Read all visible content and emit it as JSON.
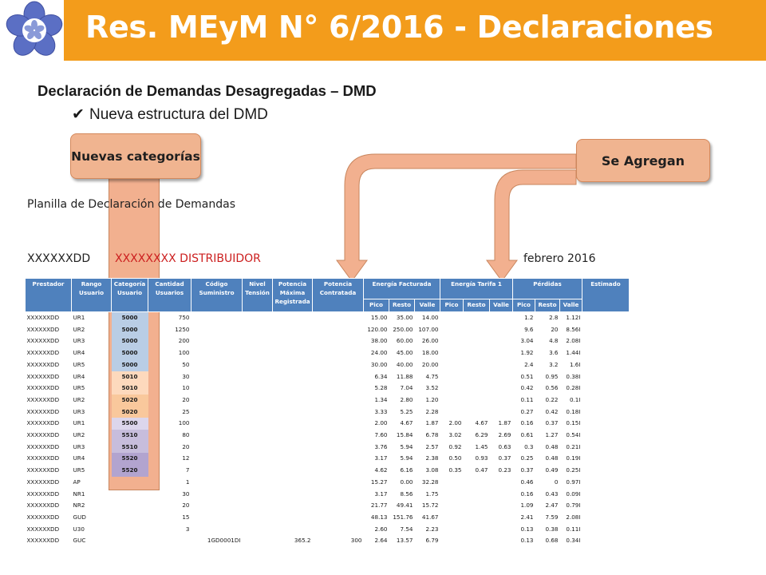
{
  "slide": {
    "title": "Res. MEyM N° 6/2016 - Declaraciones",
    "heading": "Declaración de Demandas Desagregadas – DMD",
    "bullet": "Nueva estructura del DMD",
    "callout_left": "Nuevas categorías",
    "callout_right": "Se Agregan",
    "planilla_title": "Planilla de Declaración de Demandas",
    "prestador_code": "XXXXXXDD",
    "distribuidor": "XXXXXXXX DISTRIBUIDOR",
    "period": "febrero 2016"
  },
  "colors": {
    "title_bar": "#f39c1b",
    "header_fill": "#4f81bd",
    "callout_fill": "#f0b490",
    "distribuidor_text": "#cc1f1f"
  },
  "table": {
    "headers": {
      "prestador": "Prestador",
      "rango": "Rango Usuario",
      "categoria": "Categoría Usuario",
      "cantidad": "Cantidad Usuarios",
      "codigo": "Código Suministro",
      "nivel": "Nivel Tensión",
      "pot_max": "Potencia Máxima Registrada",
      "pot_contr": "Potencia Contratada",
      "energia_fact": "Energía Facturada",
      "energia_t1": "Energía Tarifa 1",
      "perdidas": "Pérdidas",
      "estimado": "Estimado",
      "pico": "Pico",
      "resto": "Resto",
      "valle": "Valle"
    },
    "rows": [
      {
        "prestador": "XXXXXXDD",
        "rango": "UR1",
        "categoria": "5000",
        "cat_color": "c-blue",
        "cantidad": "750",
        "codigo": "",
        "nivel": "",
        "pmax": "",
        "pcont": "",
        "ef_pico": "15.00",
        "ef_resto": "35.00",
        "ef_valle": "14.00",
        "t1_pico": "",
        "t1_resto": "",
        "t1_valle": "",
        "p_pico": "1.2",
        "p_resto": "2.8",
        "p_valle": "1.12I",
        "estimado": ""
      },
      {
        "prestador": "XXXXXXDD",
        "rango": "UR2",
        "categoria": "5000",
        "cat_color": "c-blue",
        "cantidad": "1250",
        "codigo": "",
        "nivel": "",
        "pmax": "",
        "pcont": "",
        "ef_pico": "120.00",
        "ef_resto": "250.00",
        "ef_valle": "107.00",
        "t1_pico": "",
        "t1_resto": "",
        "t1_valle": "",
        "p_pico": "9.6",
        "p_resto": "20",
        "p_valle": "8.56I",
        "estimado": ""
      },
      {
        "prestador": "XXXXXXDD",
        "rango": "UR3",
        "categoria": "5000",
        "cat_color": "c-blue",
        "cantidad": "200",
        "codigo": "",
        "nivel": "",
        "pmax": "",
        "pcont": "",
        "ef_pico": "38.00",
        "ef_resto": "60.00",
        "ef_valle": "26.00",
        "t1_pico": "",
        "t1_resto": "",
        "t1_valle": "",
        "p_pico": "3.04",
        "p_resto": "4.8",
        "p_valle": "2.08I",
        "estimado": ""
      },
      {
        "prestador": "XXXXXXDD",
        "rango": "UR4",
        "categoria": "5000",
        "cat_color": "c-blue",
        "cantidad": "100",
        "codigo": "",
        "nivel": "",
        "pmax": "",
        "pcont": "",
        "ef_pico": "24.00",
        "ef_resto": "45.00",
        "ef_valle": "18.00",
        "t1_pico": "",
        "t1_resto": "",
        "t1_valle": "",
        "p_pico": "1.92",
        "p_resto": "3.6",
        "p_valle": "1.44I",
        "estimado": ""
      },
      {
        "prestador": "XXXXXXDD",
        "rango": "UR5",
        "categoria": "5000",
        "cat_color": "c-blue",
        "cantidad": "50",
        "codigo": "",
        "nivel": "",
        "pmax": "",
        "pcont": "",
        "ef_pico": "30.00",
        "ef_resto": "40.00",
        "ef_valle": "20.00",
        "t1_pico": "",
        "t1_resto": "",
        "t1_valle": "",
        "p_pico": "2.4",
        "p_resto": "3.2",
        "p_valle": "1.6I",
        "estimado": ""
      },
      {
        "prestador": "XXXXXXDD",
        "rango": "UR4",
        "categoria": "5010",
        "cat_color": "c-orange1",
        "cantidad": "30",
        "codigo": "",
        "nivel": "",
        "pmax": "",
        "pcont": "",
        "ef_pico": "6.34",
        "ef_resto": "11.88",
        "ef_valle": "4.75",
        "t1_pico": "",
        "t1_resto": "",
        "t1_valle": "",
        "p_pico": "0.51",
        "p_resto": "0.95",
        "p_valle": "0.38I",
        "estimado": ""
      },
      {
        "prestador": "XXXXXXDD",
        "rango": "UR5",
        "categoria": "5010",
        "cat_color": "c-orange1",
        "cantidad": "10",
        "codigo": "",
        "nivel": "",
        "pmax": "",
        "pcont": "",
        "ef_pico": "5.28",
        "ef_resto": "7.04",
        "ef_valle": "3.52",
        "t1_pico": "",
        "t1_resto": "",
        "t1_valle": "",
        "p_pico": "0.42",
        "p_resto": "0.56",
        "p_valle": "0.28I",
        "estimado": ""
      },
      {
        "prestador": "XXXXXXDD",
        "rango": "UR2",
        "categoria": "5020",
        "cat_color": "c-orange2",
        "cantidad": "20",
        "codigo": "",
        "nivel": "",
        "pmax": "",
        "pcont": "",
        "ef_pico": "1.34",
        "ef_resto": "2.80",
        "ef_valle": "1.20",
        "t1_pico": "",
        "t1_resto": "",
        "t1_valle": "",
        "p_pico": "0.11",
        "p_resto": "0.22",
        "p_valle": "0.1I",
        "estimado": ""
      },
      {
        "prestador": "XXXXXXDD",
        "rango": "UR3",
        "categoria": "5020",
        "cat_color": "c-orange2",
        "cantidad": "25",
        "codigo": "",
        "nivel": "",
        "pmax": "",
        "pcont": "",
        "ef_pico": "3.33",
        "ef_resto": "5.25",
        "ef_valle": "2.28",
        "t1_pico": "",
        "t1_resto": "",
        "t1_valle": "",
        "p_pico": "0.27",
        "p_resto": "0.42",
        "p_valle": "0.18I",
        "estimado": ""
      },
      {
        "prestador": "XXXXXXDD",
        "rango": "UR1",
        "categoria": "5500",
        "cat_color": "c-purple1",
        "cantidad": "100",
        "codigo": "",
        "nivel": "",
        "pmax": "",
        "pcont": "",
        "ef_pico": "2.00",
        "ef_resto": "4.67",
        "ef_valle": "1.87",
        "t1_pico": "2.00",
        "t1_resto": "4.67",
        "t1_valle": "1.87",
        "p_pico": "0.16",
        "p_resto": "0.37",
        "p_valle": "0.15I",
        "estimado": ""
      },
      {
        "prestador": "XXXXXXDD",
        "rango": "UR2",
        "categoria": "5510",
        "cat_color": "c-purple2",
        "cantidad": "80",
        "codigo": "",
        "nivel": "",
        "pmax": "",
        "pcont": "",
        "ef_pico": "7.60",
        "ef_resto": "15.84",
        "ef_valle": "6.78",
        "t1_pico": "3.02",
        "t1_resto": "6.29",
        "t1_valle": "2.69",
        "p_pico": "0.61",
        "p_resto": "1.27",
        "p_valle": "0.54I",
        "estimado": ""
      },
      {
        "prestador": "XXXXXXDD",
        "rango": "UR3",
        "categoria": "5510",
        "cat_color": "c-purple2",
        "cantidad": "20",
        "codigo": "",
        "nivel": "",
        "pmax": "",
        "pcont": "",
        "ef_pico": "3.76",
        "ef_resto": "5.94",
        "ef_valle": "2.57",
        "t1_pico": "0.92",
        "t1_resto": "1.45",
        "t1_valle": "0.63",
        "p_pico": "0.3",
        "p_resto": "0.48",
        "p_valle": "0.21I",
        "estimado": ""
      },
      {
        "prestador": "XXXXXXDD",
        "rango": "UR4",
        "categoria": "5520",
        "cat_color": "c-purple3",
        "cantidad": "12",
        "codigo": "",
        "nivel": "",
        "pmax": "",
        "pcont": "",
        "ef_pico": "3.17",
        "ef_resto": "5.94",
        "ef_valle": "2.38",
        "t1_pico": "0.50",
        "t1_resto": "0.93",
        "t1_valle": "0.37",
        "p_pico": "0.25",
        "p_resto": "0.48",
        "p_valle": "0.19I",
        "estimado": ""
      },
      {
        "prestador": "XXXXXXDD",
        "rango": "UR5",
        "categoria": "5520",
        "cat_color": "c-purple3",
        "cantidad": "7",
        "codigo": "",
        "nivel": "",
        "pmax": "",
        "pcont": "",
        "ef_pico": "4.62",
        "ef_resto": "6.16",
        "ef_valle": "3.08",
        "t1_pico": "0.35",
        "t1_resto": "0.47",
        "t1_valle": "0.23",
        "p_pico": "0.37",
        "p_resto": "0.49",
        "p_valle": "0.25I",
        "estimado": ""
      },
      {
        "prestador": "XXXXXXDD",
        "rango": "AP",
        "categoria": "",
        "cat_color": "",
        "cantidad": "1",
        "codigo": "",
        "nivel": "",
        "pmax": "",
        "pcont": "",
        "ef_pico": "15.27",
        "ef_resto": "0.00",
        "ef_valle": "32.28",
        "t1_pico": "",
        "t1_resto": "",
        "t1_valle": "",
        "p_pico": "0.46",
        "p_resto": "0",
        "p_valle": "0.97I",
        "estimado": ""
      },
      {
        "prestador": "XXXXXXDD",
        "rango": "NR1",
        "categoria": "",
        "cat_color": "",
        "cantidad": "30",
        "codigo": "",
        "nivel": "",
        "pmax": "",
        "pcont": "",
        "ef_pico": "3.17",
        "ef_resto": "8.56",
        "ef_valle": "1.75",
        "t1_pico": "",
        "t1_resto": "",
        "t1_valle": "",
        "p_pico": "0.16",
        "p_resto": "0.43",
        "p_valle": "0.09I",
        "estimado": ""
      },
      {
        "prestador": "XXXXXXDD",
        "rango": "NR2",
        "categoria": "",
        "cat_color": "",
        "cantidad": "20",
        "codigo": "",
        "nivel": "",
        "pmax": "",
        "pcont": "",
        "ef_pico": "21.77",
        "ef_resto": "49.41",
        "ef_valle": "15.72",
        "t1_pico": "",
        "t1_resto": "",
        "t1_valle": "",
        "p_pico": "1.09",
        "p_resto": "2.47",
        "p_valle": "0.79I",
        "estimado": ""
      },
      {
        "prestador": "XXXXXXDD",
        "rango": "GUD",
        "categoria": "",
        "cat_color": "",
        "cantidad": "15",
        "codigo": "",
        "nivel": "",
        "pmax": "",
        "pcont": "",
        "ef_pico": "48.13",
        "ef_resto": "151.76",
        "ef_valle": "41.67",
        "t1_pico": "",
        "t1_resto": "",
        "t1_valle": "",
        "p_pico": "2.41",
        "p_resto": "7.59",
        "p_valle": "2.08I",
        "estimado": ""
      },
      {
        "prestador": "XXXXXXDD",
        "rango": "U30",
        "categoria": "",
        "cat_color": "",
        "cantidad": "3",
        "codigo": "",
        "nivel": "",
        "pmax": "",
        "pcont": "",
        "ef_pico": "2.60",
        "ef_resto": "7.54",
        "ef_valle": "2.23",
        "t1_pico": "",
        "t1_resto": "",
        "t1_valle": "",
        "p_pico": "0.13",
        "p_resto": "0.38",
        "p_valle": "0.11I",
        "estimado": ""
      },
      {
        "prestador": "XXXXXXDD",
        "rango": "GUC",
        "categoria": "",
        "cat_color": "",
        "cantidad": "",
        "codigo": "1GD0001DI",
        "nivel": "",
        "pmax": "365.2",
        "pcont": "300",
        "ef_pico": "2.64",
        "ef_resto": "13.57",
        "ef_valle": "6.79",
        "t1_pico": "",
        "t1_resto": "",
        "t1_valle": "",
        "p_pico": "0.13",
        "p_resto": "0.68",
        "p_valle": "0.34I",
        "estimado": ""
      }
    ]
  }
}
